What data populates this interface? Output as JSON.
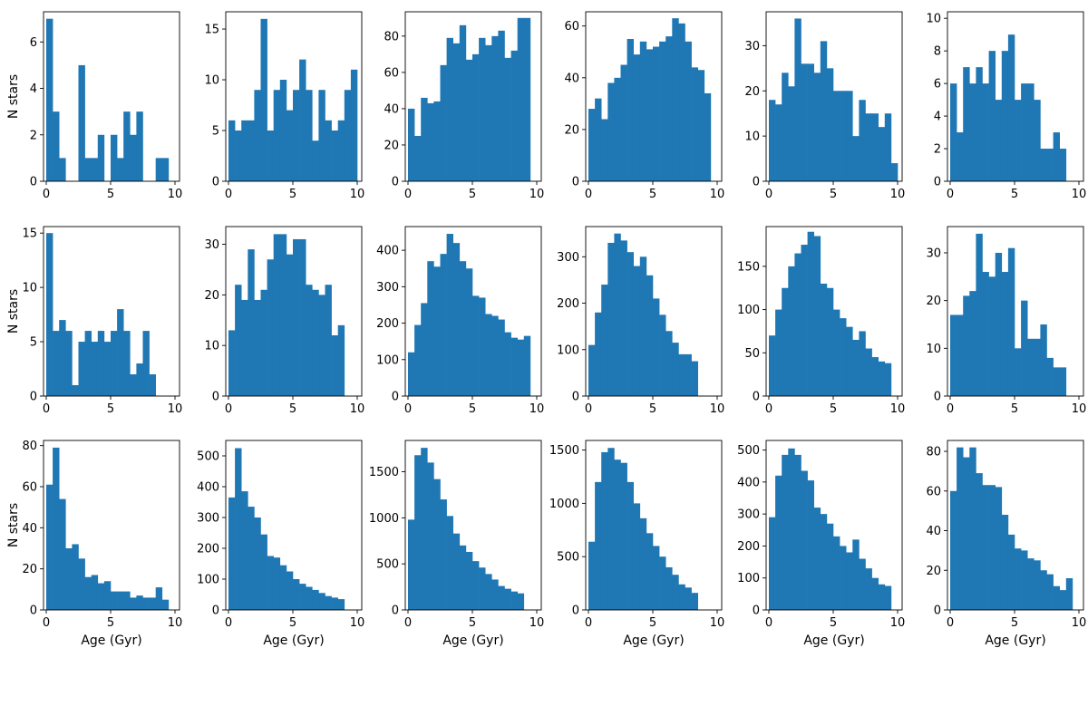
{
  "figure": {
    "bar_color": "#1f77b4",
    "ylabel": "N stars",
    "xlabel": "Age (Gyr)",
    "x_range": [
      0,
      10
    ],
    "x_ticks": [
      0,
      5,
      10
    ]
  },
  "chart_data": [
    {
      "type": "bar",
      "row": 0,
      "col": 0,
      "values": [
        7,
        3,
        1,
        0,
        0,
        5,
        1,
        1,
        2,
        0,
        2,
        1,
        3,
        2,
        3,
        0,
        0,
        1,
        1
      ],
      "ylim": [
        0,
        7.3
      ],
      "yticks": [
        0,
        2,
        4,
        6
      ]
    },
    {
      "type": "bar",
      "row": 0,
      "col": 1,
      "values": [
        6,
        5,
        6,
        6,
        9,
        16,
        5,
        9,
        10,
        7,
        9,
        12,
        9,
        4,
        9,
        6,
        5,
        6,
        9,
        11
      ],
      "ylim": [
        0,
        16.7
      ],
      "yticks": [
        0,
        5,
        10,
        15
      ]
    },
    {
      "type": "bar",
      "row": 0,
      "col": 2,
      "values": [
        40,
        25,
        46,
        43,
        44,
        64,
        79,
        76,
        86,
        67,
        70,
        79,
        75,
        80,
        83,
        68,
        72,
        90,
        90
      ],
      "ylim": [
        0,
        93.4
      ],
      "yticks": [
        0,
        20,
        40,
        60,
        80
      ]
    },
    {
      "type": "bar",
      "row": 0,
      "col": 3,
      "values": [
        28,
        32,
        24,
        38,
        40,
        45,
        55,
        49,
        54,
        51,
        52,
        54,
        56,
        63,
        61,
        54,
        44,
        43,
        34
      ],
      "ylim": [
        0,
        65.5
      ],
      "yticks": [
        0,
        20,
        40,
        60
      ]
    },
    {
      "type": "bar",
      "row": 0,
      "col": 4,
      "values": [
        18,
        17,
        24,
        21,
        36,
        26,
        26,
        24,
        31,
        25,
        20,
        20,
        20,
        10,
        18,
        15,
        15,
        12,
        15,
        4
      ],
      "ylim": [
        0,
        37.5
      ],
      "yticks": [
        0,
        10,
        20,
        30
      ]
    },
    {
      "type": "bar",
      "row": 0,
      "col": 5,
      "values": [
        6,
        3,
        7,
        6,
        7,
        6,
        8,
        5,
        8,
        9,
        5,
        6,
        6,
        5,
        2,
        2,
        3,
        2
      ],
      "ylim": [
        0,
        10.4
      ],
      "yticks": [
        0,
        2,
        4,
        6,
        8,
        10
      ]
    },
    {
      "type": "bar",
      "row": 1,
      "col": 0,
      "values": [
        15,
        6,
        7,
        6,
        1,
        5,
        6,
        5,
        6,
        5,
        6,
        8,
        6,
        2,
        3,
        6,
        2
      ],
      "ylim": [
        0,
        15.6
      ],
      "yticks": [
        0,
        5,
        10,
        15
      ]
    },
    {
      "type": "bar",
      "row": 1,
      "col": 1,
      "values": [
        13,
        22,
        19,
        29,
        19,
        21,
        27,
        32,
        32,
        28,
        31,
        31,
        22,
        21,
        20,
        22,
        12,
        14
      ],
      "ylim": [
        0,
        33.5
      ],
      "yticks": [
        0,
        10,
        20,
        30
      ]
    },
    {
      "type": "bar",
      "row": 1,
      "col": 2,
      "values": [
        120,
        195,
        255,
        370,
        355,
        390,
        445,
        420,
        370,
        350,
        275,
        270,
        225,
        220,
        210,
        175,
        160,
        155,
        165
      ],
      "ylim": [
        0,
        465
      ],
      "yticks": [
        0,
        100,
        200,
        300,
        400
      ]
    },
    {
      "type": "bar",
      "row": 1,
      "col": 3,
      "values": [
        110,
        180,
        240,
        330,
        350,
        335,
        310,
        280,
        300,
        260,
        210,
        175,
        140,
        115,
        90,
        90,
        75
      ],
      "ylim": [
        0,
        365
      ],
      "yticks": [
        0,
        100,
        200,
        300
      ]
    },
    {
      "type": "bar",
      "row": 1,
      "col": 4,
      "values": [
        70,
        100,
        125,
        150,
        165,
        175,
        190,
        185,
        130,
        125,
        100,
        90,
        80,
        65,
        75,
        55,
        45,
        40,
        38
      ],
      "ylim": [
        0,
        196
      ],
      "yticks": [
        0,
        50,
        100,
        150
      ]
    },
    {
      "type": "bar",
      "row": 1,
      "col": 5,
      "values": [
        17,
        17,
        21,
        22,
        34,
        26,
        25,
        30,
        26,
        31,
        10,
        20,
        12,
        12,
        15,
        8,
        6,
        6
      ],
      "ylim": [
        0,
        35.5
      ],
      "yticks": [
        0,
        10,
        20,
        30
      ]
    },
    {
      "type": "bar",
      "row": 2,
      "col": 0,
      "values": [
        61,
        79,
        54,
        30,
        32,
        25,
        16,
        17,
        13,
        14,
        9,
        9,
        9,
        6,
        7,
        6,
        6,
        11,
        5
      ],
      "ylim": [
        0,
        82.5
      ],
      "yticks": [
        0,
        20,
        40,
        60,
        80
      ]
    },
    {
      "type": "bar",
      "row": 2,
      "col": 1,
      "values": [
        365,
        525,
        385,
        335,
        300,
        245,
        175,
        170,
        145,
        125,
        100,
        85,
        75,
        65,
        55,
        45,
        40,
        35
      ],
      "ylim": [
        0,
        550
      ],
      "yticks": [
        0,
        100,
        200,
        300,
        400,
        500
      ]
    },
    {
      "type": "bar",
      "row": 2,
      "col": 2,
      "values": [
        980,
        1680,
        1760,
        1600,
        1420,
        1200,
        1020,
        830,
        700,
        630,
        530,
        460,
        390,
        330,
        260,
        230,
        200,
        180
      ],
      "ylim": [
        0,
        1840
      ],
      "yticks": [
        0,
        500,
        1000,
        1500
      ]
    },
    {
      "type": "bar",
      "row": 2,
      "col": 3,
      "values": [
        640,
        1200,
        1480,
        1520,
        1410,
        1380,
        1200,
        1000,
        860,
        720,
        600,
        500,
        400,
        330,
        240,
        210,
        160
      ],
      "ylim": [
        0,
        1590
      ],
      "yticks": [
        0,
        500,
        1000,
        1500
      ]
    },
    {
      "type": "bar",
      "row": 2,
      "col": 4,
      "values": [
        290,
        420,
        485,
        505,
        485,
        435,
        405,
        320,
        300,
        270,
        230,
        200,
        180,
        220,
        160,
        130,
        100,
        80,
        75
      ],
      "ylim": [
        0,
        530
      ],
      "yticks": [
        0,
        100,
        200,
        300,
        400,
        500
      ]
    },
    {
      "type": "bar",
      "row": 2,
      "col": 5,
      "values": [
        60,
        82,
        77,
        82,
        69,
        63,
        63,
        62,
        48,
        38,
        31,
        30,
        26,
        25,
        20,
        18,
        12,
        10,
        16
      ],
      "ylim": [
        0,
        85.5
      ],
      "yticks": [
        0,
        20,
        40,
        60,
        80
      ]
    }
  ]
}
